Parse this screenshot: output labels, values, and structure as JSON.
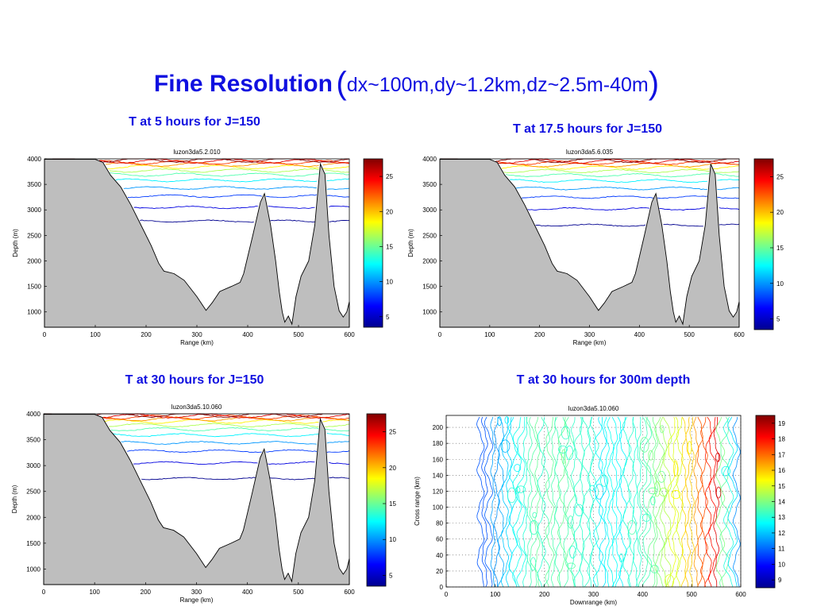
{
  "title": {
    "main": "Fine Resolution",
    "open_paren": "(",
    "sub": "dx~100m,dy~1.2km,dz~2.5m-40m",
    "close_paren": ")"
  },
  "captions": [
    "T at 5 hours for J=150",
    "T at 17.5 hours for J=150",
    "T at 30 hours for J=150",
    "T at 30 hours for 300m depth"
  ],
  "colors": {
    "caption": "#1010e0",
    "terrain": "#bebebe",
    "colormap": [
      "#00008f",
      "#0000ff",
      "#0080ff",
      "#00ffff",
      "#80ff80",
      "#ffff00",
      "#ff8000",
      "#ff0000",
      "#800000"
    ]
  },
  "chart_data": [
    {
      "type": "section-contour",
      "title": "luzon3da5.2.010",
      "xlabel": "Range (km)",
      "ylabel": "Depth (m)",
      "xlim": [
        0,
        600
      ],
      "ylim": [
        700,
        4000
      ],
      "xticks": [
        "0",
        "100",
        "200",
        "300",
        "400",
        "500",
        "600"
      ],
      "yticks": [
        "1000",
        "1500",
        "2000",
        "2500",
        "3000",
        "3500",
        "4000"
      ],
      "colorbar": {
        "range": [
          3.5,
          27.5
        ],
        "ticks": [
          "5",
          "10",
          "15",
          "20",
          "25"
        ]
      },
      "contour_levels": [
        2780,
        3050,
        3270,
        3430,
        3580,
        3690,
        3770,
        3840,
        3890,
        3930,
        3955,
        3975
      ],
      "bathymetry": [
        [
          0,
          3990
        ],
        [
          100,
          3990
        ],
        [
          115,
          3930
        ],
        [
          130,
          3680
        ],
        [
          150,
          3450
        ],
        [
          170,
          3100
        ],
        [
          190,
          2700
        ],
        [
          210,
          2300
        ],
        [
          225,
          1950
        ],
        [
          235,
          1800
        ],
        [
          255,
          1750
        ],
        [
          275,
          1620
        ],
        [
          300,
          1300
        ],
        [
          318,
          1030
        ],
        [
          330,
          1180
        ],
        [
          345,
          1400
        ],
        [
          368,
          1500
        ],
        [
          385,
          1580
        ],
        [
          392,
          1750
        ],
        [
          398,
          2000
        ],
        [
          410,
          2500
        ],
        [
          425,
          3150
        ],
        [
          433,
          3320
        ],
        [
          445,
          2700
        ],
        [
          455,
          2000
        ],
        [
          462,
          1400
        ],
        [
          468,
          1000
        ],
        [
          473,
          800
        ],
        [
          480,
          920
        ],
        [
          487,
          760
        ],
        [
          495,
          1300
        ],
        [
          505,
          1700
        ],
        [
          520,
          2000
        ],
        [
          532,
          2700
        ],
        [
          543,
          3900
        ],
        [
          552,
          3700
        ],
        [
          560,
          2500
        ],
        [
          570,
          1500
        ],
        [
          580,
          1020
        ],
        [
          588,
          900
        ],
        [
          595,
          1000
        ],
        [
          600,
          1200
        ]
      ]
    },
    {
      "type": "section-contour",
      "title": "luzon3da5.6.035",
      "xlabel": "Range (km)",
      "ylabel": "Depth (m)",
      "xlim": [
        0,
        600
      ],
      "ylim": [
        700,
        4000
      ],
      "xticks": [
        "0",
        "100",
        "200",
        "300",
        "400",
        "500",
        "600"
      ],
      "yticks": [
        "1000",
        "1500",
        "2000",
        "2500",
        "3000",
        "3500",
        "4000"
      ],
      "colorbar": {
        "range": [
          3.5,
          27.5
        ],
        "ticks": [
          "5",
          "10",
          "15",
          "20",
          "25"
        ]
      },
      "contour_levels": [
        2700,
        3020,
        3250,
        3420,
        3570,
        3680,
        3760,
        3830,
        3880,
        3925,
        3950,
        3972
      ],
      "bathymetry": [
        [
          0,
          3990
        ],
        [
          100,
          3990
        ],
        [
          115,
          3930
        ],
        [
          130,
          3680
        ],
        [
          150,
          3450
        ],
        [
          170,
          3100
        ],
        [
          190,
          2700
        ],
        [
          210,
          2300
        ],
        [
          225,
          1950
        ],
        [
          235,
          1800
        ],
        [
          255,
          1750
        ],
        [
          275,
          1620
        ],
        [
          300,
          1300
        ],
        [
          318,
          1030
        ],
        [
          330,
          1180
        ],
        [
          345,
          1400
        ],
        [
          368,
          1500
        ],
        [
          385,
          1580
        ],
        [
          392,
          1750
        ],
        [
          398,
          2000
        ],
        [
          410,
          2500
        ],
        [
          425,
          3150
        ],
        [
          433,
          3320
        ],
        [
          445,
          2700
        ],
        [
          455,
          2000
        ],
        [
          462,
          1400
        ],
        [
          468,
          1000
        ],
        [
          473,
          800
        ],
        [
          480,
          920
        ],
        [
          487,
          760
        ],
        [
          495,
          1300
        ],
        [
          505,
          1700
        ],
        [
          520,
          2000
        ],
        [
          532,
          2700
        ],
        [
          543,
          3900
        ],
        [
          552,
          3700
        ],
        [
          560,
          2500
        ],
        [
          570,
          1500
        ],
        [
          580,
          1020
        ],
        [
          588,
          900
        ],
        [
          595,
          1000
        ],
        [
          600,
          1200
        ]
      ]
    },
    {
      "type": "section-contour",
      "title": "luzon3da5.10.060",
      "xlabel": "Range (km)",
      "ylabel": "Depth (m)",
      "xlim": [
        0,
        600
      ],
      "ylim": [
        700,
        4000
      ],
      "xticks": [
        "0",
        "100",
        "200",
        "300",
        "400",
        "500",
        "600"
      ],
      "yticks": [
        "1000",
        "1500",
        "2000",
        "2500",
        "3000",
        "3500",
        "4000"
      ],
      "colorbar": {
        "range": [
          3.5,
          27.5
        ],
        "ticks": [
          "5",
          "10",
          "15",
          "20",
          "25"
        ]
      },
      "contour_levels": [
        2750,
        3050,
        3280,
        3440,
        3590,
        3700,
        3780,
        3850,
        3900,
        3935,
        3958,
        3976
      ],
      "bathymetry": [
        [
          0,
          3990
        ],
        [
          100,
          3990
        ],
        [
          115,
          3930
        ],
        [
          130,
          3680
        ],
        [
          150,
          3450
        ],
        [
          170,
          3100
        ],
        [
          190,
          2700
        ],
        [
          210,
          2300
        ],
        [
          225,
          1950
        ],
        [
          235,
          1800
        ],
        [
          255,
          1750
        ],
        [
          275,
          1620
        ],
        [
          300,
          1300
        ],
        [
          318,
          1030
        ],
        [
          330,
          1180
        ],
        [
          345,
          1400
        ],
        [
          368,
          1500
        ],
        [
          385,
          1580
        ],
        [
          392,
          1750
        ],
        [
          398,
          2000
        ],
        [
          410,
          2500
        ],
        [
          425,
          3150
        ],
        [
          433,
          3320
        ],
        [
          445,
          2700
        ],
        [
          455,
          2000
        ],
        [
          462,
          1400
        ],
        [
          468,
          1000
        ],
        [
          473,
          800
        ],
        [
          480,
          920
        ],
        [
          487,
          760
        ],
        [
          495,
          1300
        ],
        [
          505,
          1700
        ],
        [
          520,
          2000
        ],
        [
          532,
          2700
        ],
        [
          543,
          3900
        ],
        [
          552,
          3700
        ],
        [
          560,
          2500
        ],
        [
          570,
          1500
        ],
        [
          580,
          1020
        ],
        [
          588,
          900
        ],
        [
          595,
          1000
        ],
        [
          600,
          1200
        ]
      ]
    },
    {
      "type": "plan-contour",
      "title": "luzon3da5.10.060",
      "xlabel": "Downrange (km)",
      "ylabel": "Cross range (km)",
      "xlim": [
        0,
        600
      ],
      "ylim": [
        0,
        215
      ],
      "xticks": [
        "0",
        "100",
        "200",
        "300",
        "400",
        "500",
        "600"
      ],
      "yticks": [
        "0",
        "20",
        "40",
        "60",
        "80",
        "100",
        "120",
        "140",
        "160",
        "180",
        "200"
      ],
      "grid": "dotted",
      "colorbar": {
        "range": [
          8.5,
          19.5
        ],
        "ticks": [
          "9",
          "10",
          "11",
          "12",
          "13",
          "14",
          "15",
          "16",
          "17",
          "18",
          "19"
        ]
      }
    }
  ]
}
